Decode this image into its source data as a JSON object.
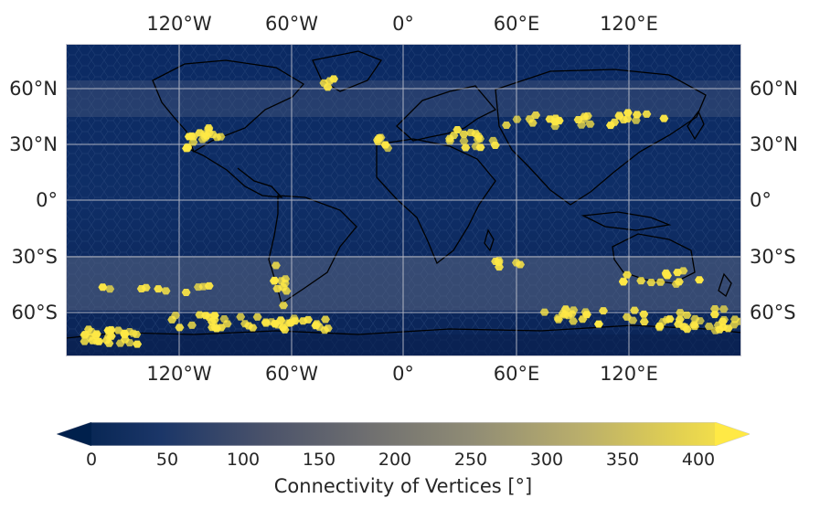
{
  "map": {
    "top_lon_labels": [
      "120°W",
      "60°W",
      "0°",
      "60°E",
      "120°E"
    ],
    "bottom_lon_labels": [
      "120°W",
      "60°W",
      "0°",
      "60°E",
      "120°E"
    ],
    "left_lat_labels": [
      "60°N",
      "30°N",
      "0°",
      "30°S",
      "60°S"
    ],
    "right_lat_labels": [
      "60°N",
      "30°N",
      "0°",
      "30°S",
      "60°S"
    ],
    "colors": {
      "low": "#00204c",
      "mid": "#7c7b78",
      "high": "#ffe945",
      "grid": "#c8c8d0"
    }
  },
  "colorbar": {
    "ticks": [
      "0",
      "50",
      "100",
      "150",
      "200",
      "250",
      "300",
      "350",
      "400"
    ],
    "label": "Connectivity of Vertices [°]",
    "range": [
      0,
      400
    ]
  }
}
